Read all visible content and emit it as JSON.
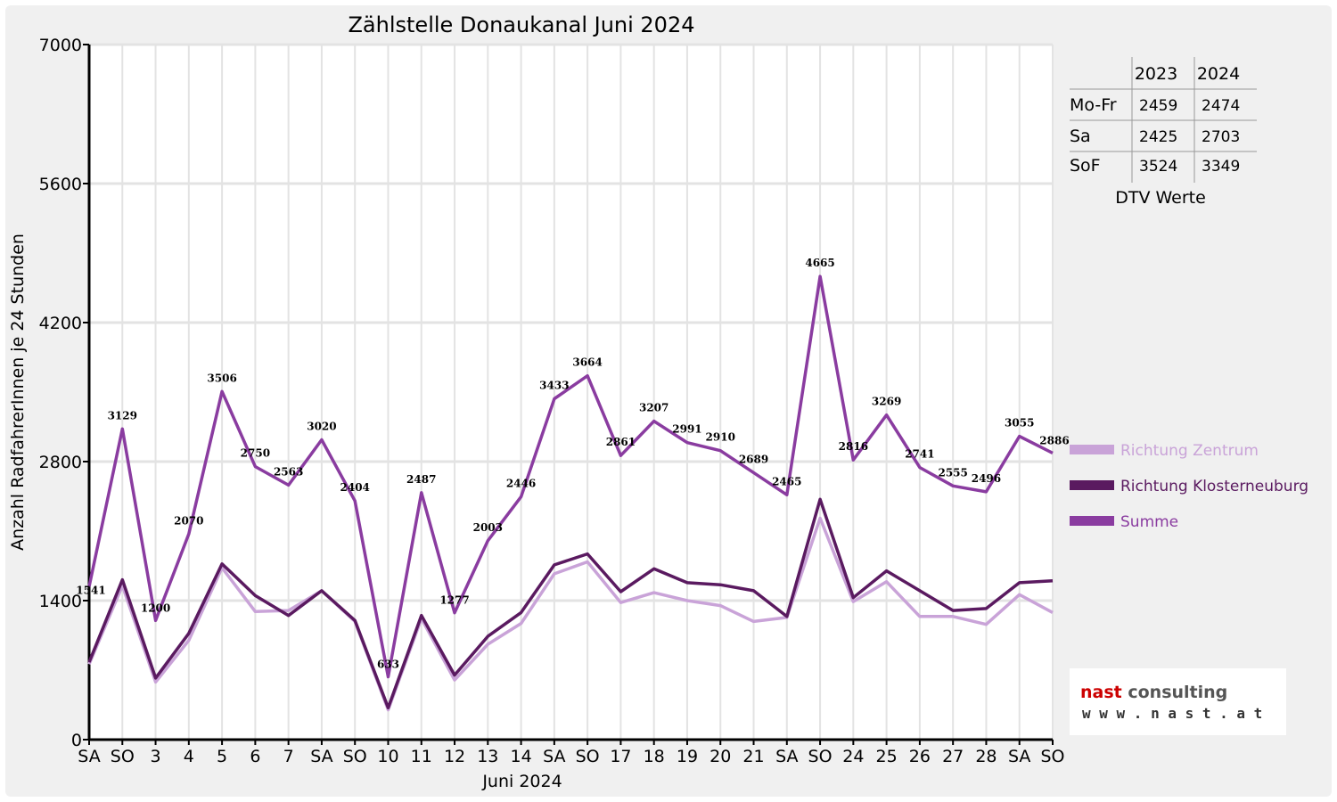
{
  "chart_data": {
    "type": "line",
    "title": "Zählstelle Donaukanal Juni 2024",
    "xlabel": "Juni 2024",
    "ylabel": "Anzahl RadfahrerInnen je 24 Stunden",
    "ylim": [
      0,
      7000
    ],
    "yticks": [
      0,
      1400,
      2800,
      4200,
      5600,
      7000
    ],
    "grid": true,
    "legend_position": "right",
    "categories": [
      "SA",
      "SO",
      "3",
      "4",
      "5",
      "6",
      "7",
      "SA",
      "SO",
      "10",
      "11",
      "12",
      "13",
      "14",
      "SA",
      "SO",
      "17",
      "18",
      "19",
      "20",
      "21",
      "SA",
      "SO",
      "24",
      "25",
      "26",
      "27",
      "28",
      "SA",
      "SO"
    ],
    "weekend_color": "#ff0000",
    "weekend_indices": [
      1,
      8,
      15,
      22,
      29
    ],
    "series": [
      {
        "name": "Richtung Zentrum",
        "color": "#c9a3d8",
        "values": [
          760,
          1550,
          580,
          1000,
          1730,
          1290,
          1300,
          1500,
          1190,
          300,
          1220,
          600,
          960,
          1170,
          1670,
          1790,
          1380,
          1480,
          1400,
          1350,
          1190,
          1230,
          2230,
          1390,
          1590,
          1240,
          1240,
          1160,
          1460,
          1280
        ]
      },
      {
        "name": "Richtung Klosterneuburg",
        "color": "#5a1a60",
        "values": [
          780,
          1610,
          620,
          1070,
          1770,
          1450,
          1250,
          1500,
          1200,
          320,
          1250,
          650,
          1040,
          1280,
          1760,
          1870,
          1490,
          1720,
          1580,
          1560,
          1500,
          1240,
          2420,
          1430,
          1700,
          1500,
          1300,
          1320,
          1580,
          1600
        ]
      },
      {
        "name": "Summe",
        "color": "#8a3ca0",
        "values": [
          1541,
          3129,
          1200,
          2070,
          3506,
          2750,
          2563,
          3020,
          2404,
          633,
          2487,
          1277,
          2003,
          2446,
          3433,
          3664,
          2861,
          3207,
          2991,
          2910,
          2689,
          2465,
          4665,
          2816,
          3269,
          2741,
          2555,
          2496,
          3055,
          2886
        ]
      }
    ],
    "data_labels": [
      "1541",
      "3129",
      "1200",
      "2070",
      "3506",
      "2750",
      "2563",
      "3020",
      "2404",
      "633",
      "2487",
      "1277",
      "2003",
      "2446",
      "3433",
      "3664",
      "2861",
      "3207",
      "2991",
      "2910",
      "2689",
      "2465",
      "4665",
      "2816",
      "3269",
      "2741",
      "2555",
      "2496",
      "3055",
      "2886"
    ]
  },
  "dtv_table": {
    "caption": "DTV Werte",
    "columns": [
      "2023",
      "2024"
    ],
    "rows": [
      {
        "label": "Mo-Fr",
        "v2023": "2459",
        "v2024": "2474"
      },
      {
        "label": "Sa",
        "v2023": "2425",
        "v2024": "2703"
      },
      {
        "label": "SoF",
        "v2023": "3524",
        "v2024": "3349"
      }
    ]
  },
  "logo": {
    "name_part1": "nast",
    "name_part2": " consulting",
    "url": "w w w . n a s t . a t",
    "color_part1": "#cc0000",
    "color_part2": "#555555"
  }
}
